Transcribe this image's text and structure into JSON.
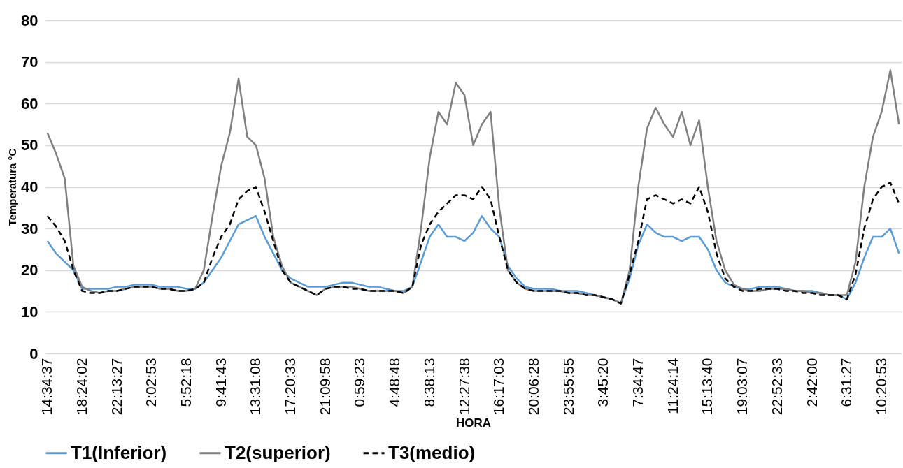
{
  "chart_data": {
    "type": "line",
    "xlabel": "HORA",
    "ylabel": "Temperatura °C",
    "categories": [
      "14:34:37",
      null,
      null,
      null,
      "18:24:02",
      null,
      null,
      null,
      "22:13:27",
      null,
      null,
      null,
      "2:02:53",
      null,
      null,
      null,
      "5:52:18",
      null,
      null,
      null,
      "9:41:43",
      null,
      null,
      null,
      "13:31:08",
      null,
      null,
      null,
      "17:20:33",
      null,
      null,
      null,
      "21:09:58",
      null,
      null,
      null,
      "0:59:23",
      null,
      null,
      null,
      "4:48:48",
      null,
      null,
      null,
      "8:38:13",
      null,
      null,
      null,
      "12:27:38",
      null,
      null,
      null,
      "16:17:03",
      null,
      null,
      null,
      "20:06:28",
      null,
      null,
      null,
      "23:55:55",
      null,
      null,
      null,
      "3:45:20",
      null,
      null,
      null,
      "7:34:47",
      null,
      null,
      null,
      "11:24:14",
      null,
      null,
      null,
      "15:13:40",
      null,
      null,
      null,
      "19:03:07",
      null,
      null,
      null,
      "22:52:33",
      null,
      null,
      null,
      "2:42:00",
      null,
      null,
      null,
      "6:31:27",
      null,
      null,
      null,
      "10:20:53",
      null,
      null
    ],
    "series": [
      {
        "name": "T1(Inferior)",
        "color": "#5b9bd5",
        "line_style": "solid",
        "values": [
          27,
          24,
          22,
          20,
          15.5,
          15.5,
          15.5,
          15.5,
          16,
          16,
          16.5,
          16.5,
          16.5,
          16,
          16,
          16,
          15.5,
          15.5,
          17,
          20,
          23,
          27,
          31,
          32,
          33,
          28,
          24,
          20,
          18,
          17,
          16,
          16,
          16,
          16.5,
          17,
          17,
          16.5,
          16,
          16,
          15.5,
          15,
          15,
          16,
          22,
          28,
          31,
          28,
          28,
          27,
          29,
          33,
          30,
          28,
          21,
          18,
          16,
          15.5,
          15.5,
          15.5,
          15,
          15,
          15,
          14.5,
          14,
          13.5,
          13,
          12,
          18,
          26,
          31,
          29,
          28,
          28,
          27,
          28,
          28,
          25,
          20,
          17,
          16,
          15.5,
          15.5,
          16,
          16,
          16,
          15.5,
          15,
          15,
          15,
          14.5,
          14,
          14,
          13,
          17,
          23,
          28,
          28,
          30,
          24
        ]
      },
      {
        "name": "T2(superior)",
        "color": "#808080",
        "line_style": "solid",
        "values": [
          53,
          48,
          42,
          21,
          16,
          15,
          14.5,
          15,
          15,
          15.5,
          16,
          16,
          16,
          15.5,
          15.5,
          15,
          15,
          15.5,
          20,
          33,
          45,
          53,
          66,
          52,
          50,
          42,
          28,
          21,
          17,
          16,
          15,
          14,
          15.5,
          16,
          16,
          16,
          15.5,
          15,
          15,
          15,
          15,
          14.5,
          16,
          30,
          47,
          58,
          55,
          65,
          62,
          50,
          55,
          58,
          35,
          20,
          17,
          15.5,
          15,
          15,
          15,
          15,
          14.5,
          14.5,
          14,
          14,
          13.5,
          13,
          12,
          20,
          40,
          54,
          59,
          55,
          52,
          58,
          50,
          56,
          40,
          27,
          20,
          16.5,
          15.5,
          15,
          15,
          15.5,
          15.5,
          15.5,
          15,
          15,
          14.5,
          14.5,
          14,
          14,
          14,
          22,
          40,
          52,
          58,
          68,
          55
        ]
      },
      {
        "name": "T3(medio)",
        "color": "#000000",
        "line_style": "dashed",
        "values": [
          33,
          30.5,
          27,
          20,
          15,
          14.5,
          14.5,
          15,
          15,
          15.5,
          16,
          16,
          16,
          15.5,
          15.5,
          15,
          15,
          15.5,
          17,
          23,
          28,
          31,
          37,
          39,
          40,
          34,
          27,
          20,
          17,
          16,
          15,
          14,
          15.5,
          16,
          16,
          15.5,
          15.5,
          15,
          15,
          15,
          15,
          14.5,
          16,
          26,
          31,
          34,
          36,
          38,
          38,
          37,
          40,
          37,
          28,
          20,
          17,
          15.5,
          15,
          15,
          15,
          15,
          14.5,
          14.5,
          14,
          14,
          13.5,
          13,
          12,
          19,
          27,
          37,
          38,
          37,
          36,
          37,
          36,
          40,
          34,
          24,
          18,
          16,
          15,
          15,
          15.5,
          15.5,
          15.5,
          15,
          15,
          14.5,
          14.5,
          14,
          14,
          14,
          13,
          19,
          30,
          37,
          40,
          41,
          36
        ]
      }
    ],
    "ylim": [
      0,
      80
    ],
    "yticks": [
      0,
      10,
      20,
      30,
      40,
      50,
      60,
      70,
      80
    ],
    "grid": "y",
    "legend": "bottom"
  }
}
